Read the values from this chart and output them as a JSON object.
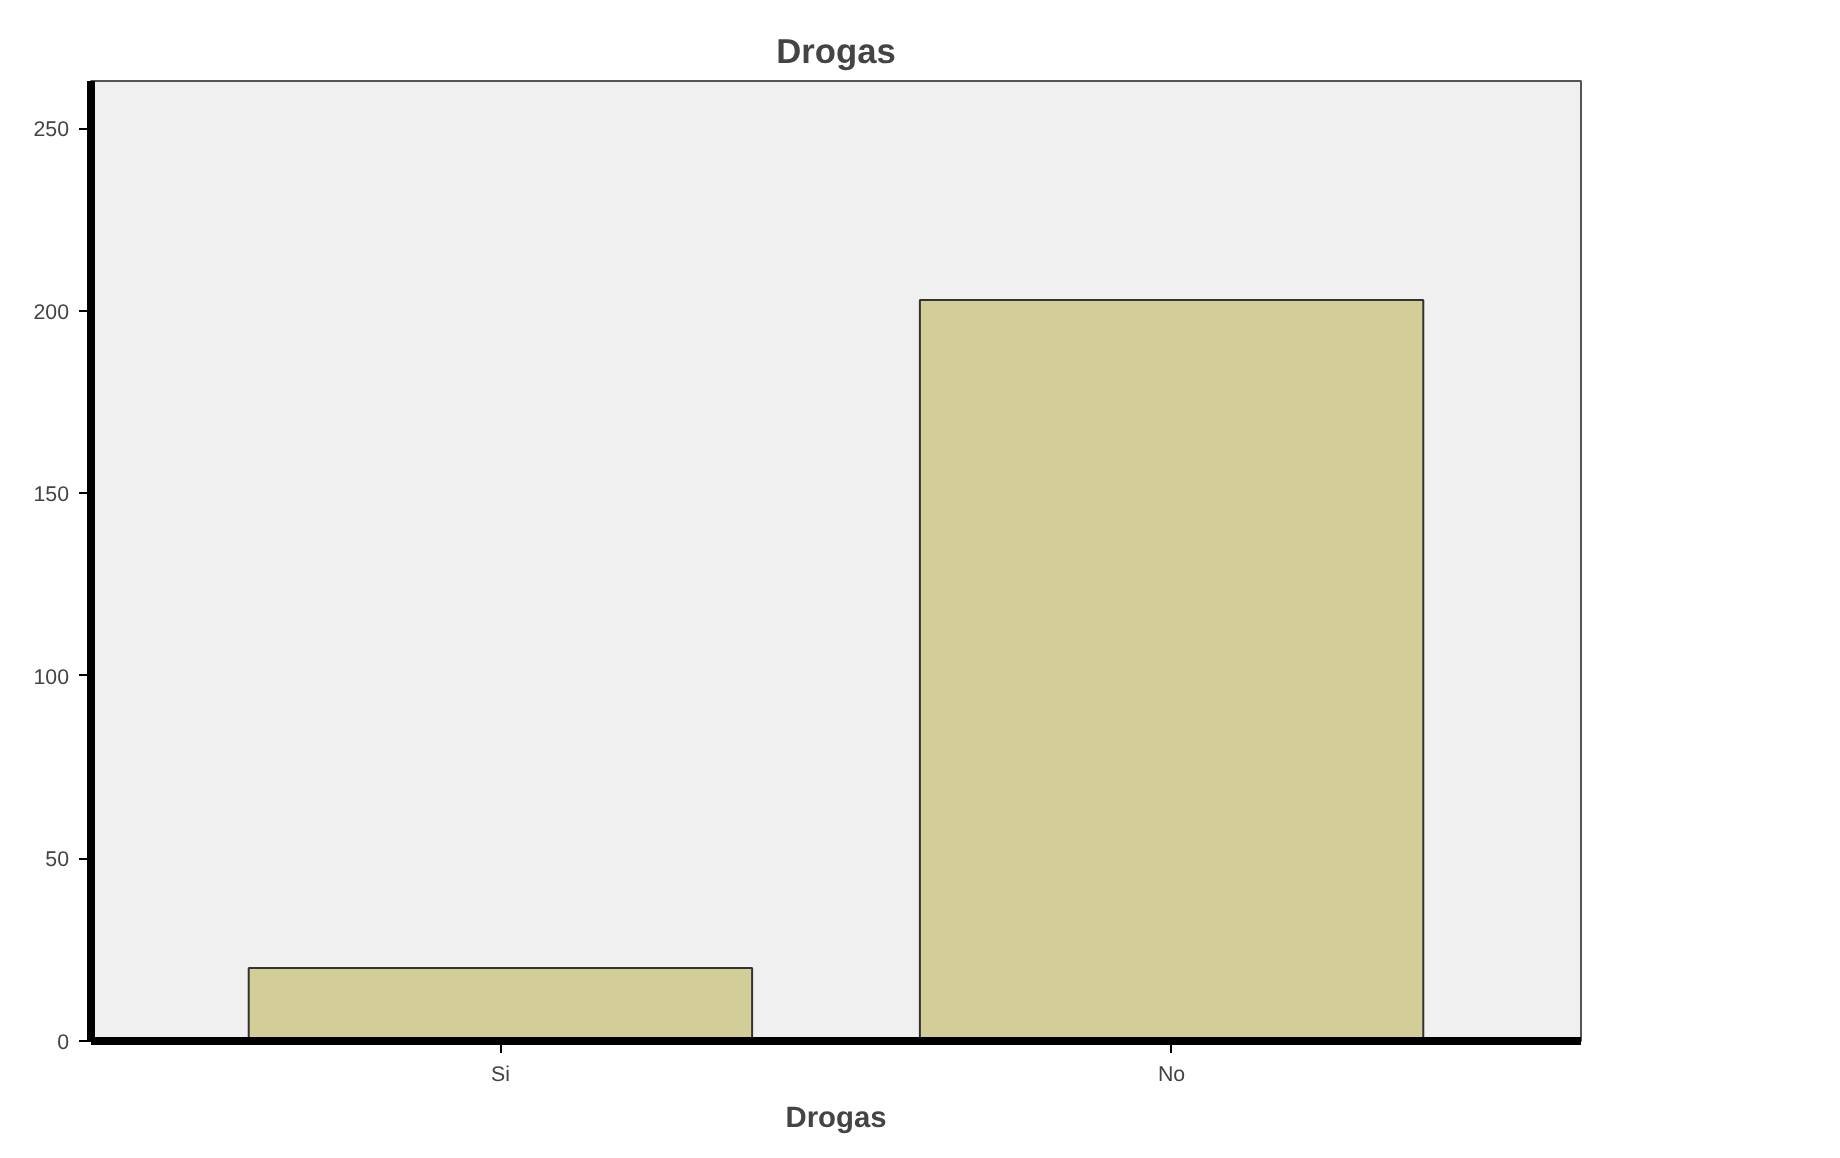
{
  "chart_data": {
    "type": "bar",
    "title": "Drogas",
    "xlabel": "Drogas",
    "categories": [
      "Si",
      "No"
    ],
    "values": [
      20,
      203
    ],
    "color": "#d3cd98",
    "ylim": [
      0,
      263
    ],
    "yticks": [
      0,
      50,
      100,
      150,
      200,
      250
    ],
    "grid": false
  }
}
